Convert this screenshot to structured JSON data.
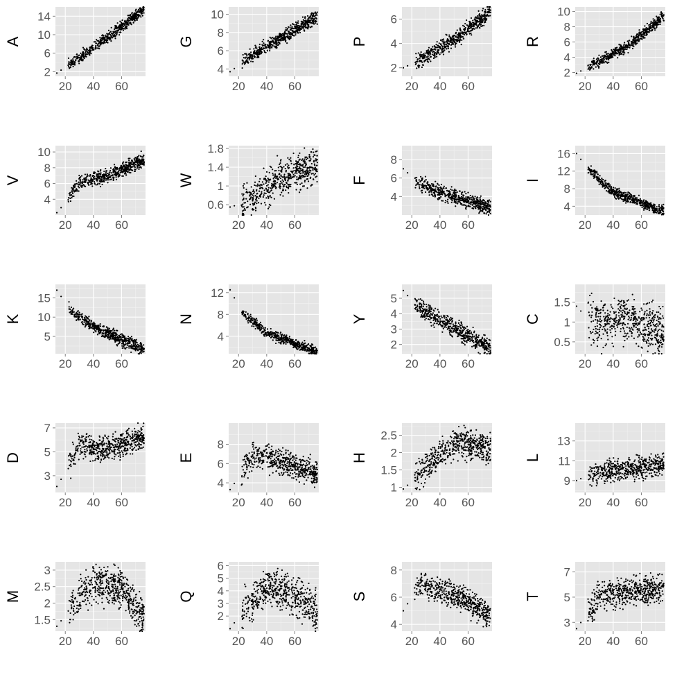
{
  "chart_data": [
    {
      "type": "scatter",
      "ylabel": "A",
      "xlim": [
        13,
        77
      ],
      "ylim": [
        1,
        16
      ],
      "xticks": [
        20,
        40,
        60
      ],
      "yticks": [
        2,
        6,
        10,
        14
      ],
      "trend": [
        [
          14,
          1.7
        ],
        [
          22,
          3.4
        ],
        [
          45,
          8.2
        ],
        [
          75,
          15.3
        ]
      ],
      "spread": 0.6,
      "n": 550
    },
    {
      "type": "scatter",
      "ylabel": "G",
      "xlim": [
        13,
        77
      ],
      "ylim": [
        3.2,
        10.8
      ],
      "xticks": [
        20,
        40,
        60
      ],
      "yticks": [
        4,
        6,
        8,
        10
      ],
      "trend": [
        [
          14,
          3.7
        ],
        [
          28,
          5.3
        ],
        [
          40,
          6.5
        ],
        [
          75,
          9.6
        ]
      ],
      "spread": 0.35,
      "n": 550
    },
    {
      "type": "scatter",
      "ylabel": "P",
      "xlim": [
        13,
        77
      ],
      "ylim": [
        1.3,
        7.0
      ],
      "xticks": [
        20,
        40,
        60
      ],
      "yticks": [
        2,
        4,
        6
      ],
      "trend": [
        [
          14,
          2.0
        ],
        [
          25,
          2.6
        ],
        [
          50,
          4.3
        ],
        [
          75,
          6.5
        ]
      ],
      "spread": 0.32,
      "n": 550
    },
    {
      "type": "scatter",
      "ylabel": "R",
      "xlim": [
        13,
        77
      ],
      "ylim": [
        1.5,
        10.6
      ],
      "xticks": [
        20,
        40,
        60
      ],
      "yticks": [
        2,
        4,
        6,
        8,
        10
      ],
      "trend": [
        [
          14,
          1.9
        ],
        [
          25,
          3.0
        ],
        [
          50,
          5.4
        ],
        [
          75,
          9.2
        ]
      ],
      "spread": 0.35,
      "n": 550
    },
    {
      "type": "scatter",
      "ylabel": "V",
      "xlim": [
        13,
        77
      ],
      "ylim": [
        2.0,
        10.8
      ],
      "xticks": [
        20,
        40,
        60
      ],
      "yticks": [
        4,
        6,
        8,
        10
      ],
      "trend": [
        [
          14,
          2.3
        ],
        [
          22,
          4.0
        ],
        [
          30,
          6.1
        ],
        [
          50,
          6.9
        ],
        [
          75,
          8.9
        ]
      ],
      "spread": 0.45,
      "n": 550
    },
    {
      "type": "scatter",
      "ylabel": "W",
      "xlim": [
        13,
        77
      ],
      "ylim": [
        0.38,
        1.86
      ],
      "xticks": [
        20,
        40,
        60
      ],
      "yticks": [
        0.6,
        1.0,
        1.4,
        1.8
      ],
      "trend": [
        [
          14,
          0.55
        ],
        [
          25,
          0.65
        ],
        [
          45,
          1.1
        ],
        [
          75,
          1.45
        ]
      ],
      "spread": 0.18,
      "n": 550
    },
    {
      "type": "scatter",
      "ylabel": "F",
      "xlim": [
        13,
        77
      ],
      "ylim": [
        2.0,
        9.5
      ],
      "xticks": [
        20,
        40,
        60
      ],
      "yticks": [
        4,
        6,
        8
      ],
      "trend": [
        [
          14,
          7.0
        ],
        [
          25,
          5.4
        ],
        [
          40,
          4.5
        ],
        [
          75,
          2.8
        ]
      ],
      "spread": 0.4,
      "n": 550
    },
    {
      "type": "scatter",
      "ylabel": "I",
      "xlim": [
        13,
        77
      ],
      "ylim": [
        2.0,
        17.8
      ],
      "xticks": [
        20,
        40,
        60
      ],
      "yticks": [
        4,
        8,
        12,
        16
      ],
      "trend": [
        [
          14,
          16.0
        ],
        [
          22,
          12.5
        ],
        [
          40,
          7.2
        ],
        [
          75,
          2.9
        ]
      ],
      "spread": 0.55,
      "n": 550
    },
    {
      "type": "scatter",
      "ylabel": "K",
      "xlim": [
        13,
        77
      ],
      "ylim": [
        0.5,
        18.5
      ],
      "xticks": [
        20,
        40,
        60
      ],
      "yticks": [
        5,
        10,
        15
      ],
      "trend": [
        [
          14,
          17.0
        ],
        [
          25,
          11.0
        ],
        [
          45,
          6.5
        ],
        [
          75,
          1.8
        ]
      ],
      "spread": 0.8,
      "n": 550
    },
    {
      "type": "scatter",
      "ylabel": "N",
      "xlim": [
        13,
        77
      ],
      "ylim": [
        0.8,
        13.5
      ],
      "xticks": [
        20,
        40,
        60
      ],
      "yticks": [
        4,
        8,
        12
      ],
      "trend": [
        [
          14,
          12.5
        ],
        [
          22,
          8.6
        ],
        [
          40,
          4.6
        ],
        [
          75,
          1.2
        ]
      ],
      "spread": 0.45,
      "n": 550
    },
    {
      "type": "scatter",
      "ylabel": "Y",
      "xlim": [
        13,
        77
      ],
      "ylim": [
        1.4,
        5.9
      ],
      "xticks": [
        20,
        40,
        60
      ],
      "yticks": [
        2,
        3,
        4,
        5
      ],
      "trend": [
        [
          14,
          5.5
        ],
        [
          25,
          4.3
        ],
        [
          40,
          3.6
        ],
        [
          75,
          1.8
        ]
      ],
      "spread": 0.3,
      "n": 550
    },
    {
      "type": "scatter",
      "ylabel": "C",
      "xlim": [
        13,
        77
      ],
      "ylim": [
        0.2,
        1.95
      ],
      "xticks": [
        20,
        40,
        60
      ],
      "yticks": [
        0.5,
        1.0,
        1.5
      ],
      "trend": [
        [
          14,
          1.4
        ],
        [
          25,
          0.95
        ],
        [
          50,
          1.05
        ],
        [
          75,
          0.75
        ]
      ],
      "spread": 0.28,
      "n": 550
    },
    {
      "type": "scatter",
      "ylabel": "D",
      "xlim": [
        13,
        77
      ],
      "ylim": [
        1.6,
        7.4
      ],
      "xticks": [
        20,
        40,
        60
      ],
      "yticks": [
        3,
        5,
        7
      ],
      "trend": [
        [
          14,
          2.1
        ],
        [
          22,
          3.7
        ],
        [
          30,
          5.5
        ],
        [
          50,
          5.2
        ],
        [
          75,
          6.2
        ]
      ],
      "spread": 0.5,
      "n": 550
    },
    {
      "type": "scatter",
      "ylabel": "E",
      "xlim": [
        13,
        77
      ],
      "ylim": [
        3.0,
        10.2
      ],
      "xticks": [
        20,
        40,
        60
      ],
      "yticks": [
        4,
        6,
        8
      ],
      "trend": [
        [
          14,
          3.3
        ],
        [
          22,
          5.0
        ],
        [
          30,
          7.0
        ],
        [
          50,
          6.2
        ],
        [
          75,
          5.0
        ]
      ],
      "spread": 0.65,
      "n": 550
    },
    {
      "type": "scatter",
      "ylabel": "H",
      "xlim": [
        13,
        77
      ],
      "ylim": [
        0.85,
        2.85
      ],
      "xticks": [
        20,
        40,
        60
      ],
      "yticks": [
        1.0,
        1.5,
        2.0,
        2.5
      ],
      "trend": [
        [
          14,
          0.95
        ],
        [
          25,
          1.35
        ],
        [
          40,
          2.0
        ],
        [
          55,
          2.3
        ],
        [
          75,
          2.1
        ]
      ],
      "spread": 0.2,
      "n": 550
    },
    {
      "type": "scatter",
      "ylabel": "L",
      "xlim": [
        13,
        77
      ],
      "ylim": [
        7.8,
        14.8
      ],
      "xticks": [
        20,
        40,
        60
      ],
      "yticks": [
        9,
        11,
        13
      ],
      "trend": [
        [
          14,
          9.0
        ],
        [
          25,
          9.7
        ],
        [
          50,
          10.2
        ],
        [
          75,
          10.6
        ]
      ],
      "spread": 0.55,
      "n": 550
    },
    {
      "type": "scatter",
      "ylabel": "M",
      "xlim": [
        13,
        77
      ],
      "ylim": [
        1.15,
        3.25
      ],
      "xticks": [
        20,
        40,
        60
      ],
      "yticks": [
        1.5,
        2.0,
        2.5,
        3.0
      ],
      "trend": [
        [
          14,
          1.3
        ],
        [
          25,
          1.9
        ],
        [
          40,
          2.6
        ],
        [
          60,
          2.5
        ],
        [
          75,
          1.6
        ]
      ],
      "spread": 0.28,
      "n": 550
    },
    {
      "type": "scatter",
      "ylabel": "Q",
      "xlim": [
        13,
        77
      ],
      "ylim": [
        0.8,
        6.3
      ],
      "xticks": [
        20,
        40,
        60
      ],
      "yticks": [
        2,
        3,
        4,
        5,
        6
      ],
      "trend": [
        [
          14,
          1.0
        ],
        [
          25,
          2.7
        ],
        [
          42,
          4.5
        ],
        [
          60,
          3.7
        ],
        [
          75,
          2.5
        ]
      ],
      "spread": 0.75,
      "n": 550
    },
    {
      "type": "scatter",
      "ylabel": "S",
      "xlim": [
        13,
        77
      ],
      "ylim": [
        3.5,
        8.6
      ],
      "xticks": [
        20,
        40,
        60
      ],
      "yticks": [
        4,
        6,
        8
      ],
      "trend": [
        [
          14,
          5.0
        ],
        [
          25,
          6.9
        ],
        [
          50,
          6.2
        ],
        [
          75,
          4.7
        ]
      ],
      "spread": 0.45,
      "n": 550
    },
    {
      "type": "scatter",
      "ylabel": "T",
      "xlim": [
        13,
        77
      ],
      "ylim": [
        2.3,
        7.8
      ],
      "xticks": [
        20,
        40,
        60
      ],
      "yticks": [
        3,
        5,
        7
      ],
      "trend": [
        [
          14,
          2.5
        ],
        [
          22,
          3.8
        ],
        [
          30,
          5.2
        ],
        [
          50,
          5.5
        ],
        [
          75,
          5.6
        ]
      ],
      "spread": 0.55,
      "n": 550
    }
  ]
}
